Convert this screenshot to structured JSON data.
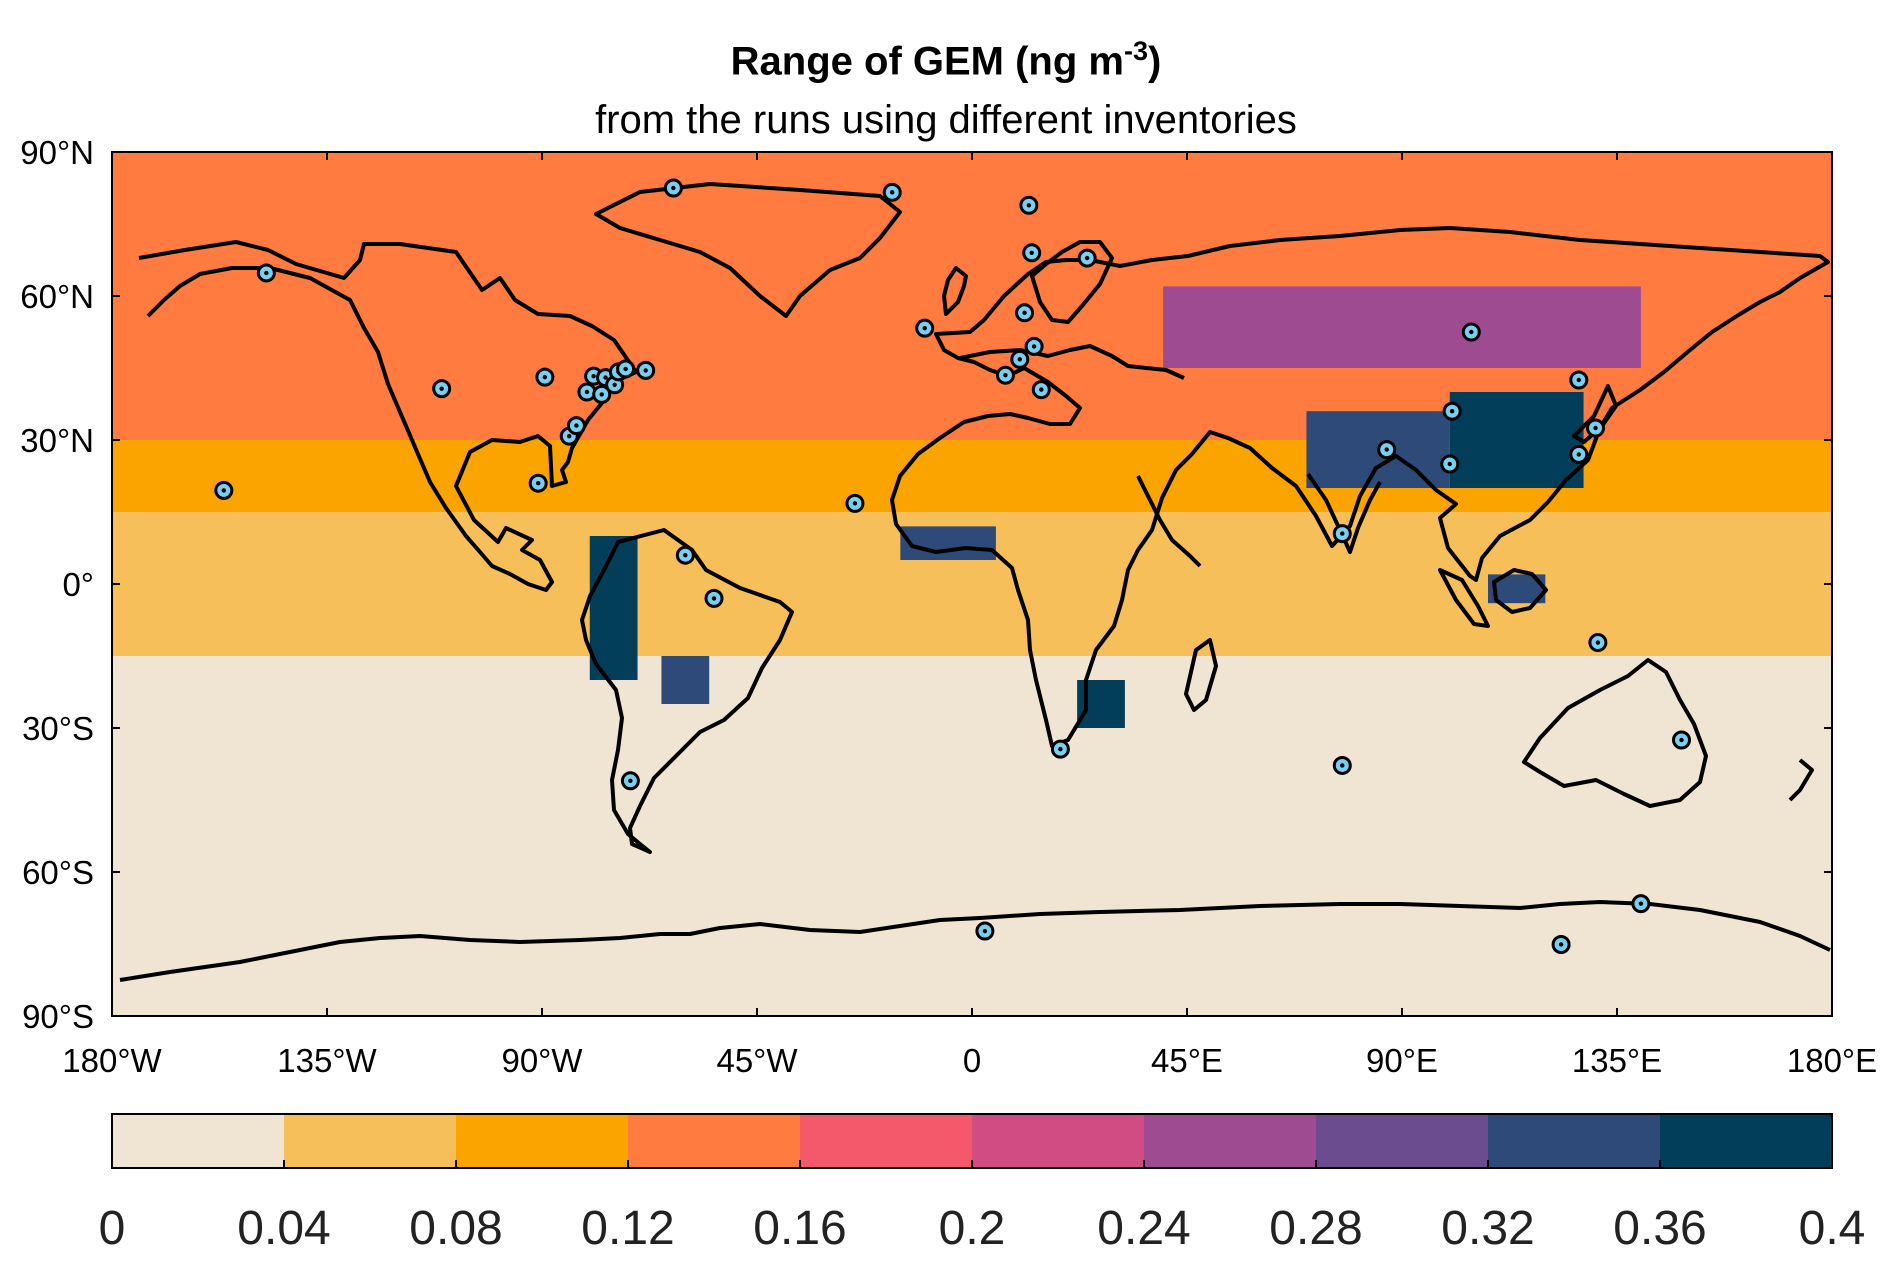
{
  "title": {
    "main": "Range of GEM (ng m",
    "superscript": "-3",
    "close": ")",
    "subtitle": "from the runs using different inventories"
  },
  "map": {
    "projection": "equirectangular",
    "lat_ticks": [
      "90°N",
      "60°N",
      "30°N",
      "0°",
      "30°S",
      "60°S",
      "90°S"
    ],
    "lon_ticks": [
      "180°W",
      "135°W",
      "90°W",
      "45°W",
      "0",
      "45°E",
      "90°E",
      "135°E",
      "180°E"
    ],
    "background_bands": [
      {
        "lat_from": 90,
        "lat_to": 30,
        "bin": 3
      },
      {
        "lat_from": 30,
        "lat_to": 15,
        "bin": 2
      },
      {
        "lat_from": 15,
        "lat_to": -15,
        "bin": 1
      },
      {
        "lat_from": -15,
        "lat_to": -90,
        "bin": 0
      }
    ],
    "stations": [
      [
        -147.7,
        64.8
      ],
      [
        -156.6,
        19.5
      ],
      [
        -111.0,
        40.7
      ],
      [
        -89.4,
        43.1
      ],
      [
        -84.3,
        30.8
      ],
      [
        -82.8,
        33.0
      ],
      [
        -80.6,
        40.0
      ],
      [
        -77.5,
        39.5
      ],
      [
        -79.2,
        43.3
      ],
      [
        -76.7,
        43.0
      ],
      [
        -74.8,
        41.5
      ],
      [
        -74.0,
        44.2
      ],
      [
        -72.5,
        44.8
      ],
      [
        -68.3,
        44.5
      ],
      [
        -90.8,
        21.0
      ],
      [
        -62.5,
        82.5
      ],
      [
        -16.7,
        81.6
      ],
      [
        -54.0,
        -3.0
      ],
      [
        -60.0,
        6.0
      ],
      [
        -71.5,
        -41.0
      ],
      [
        -24.5,
        16.8
      ],
      [
        -9.9,
        53.3
      ],
      [
        11.9,
        78.9
      ],
      [
        12.5,
        69.0
      ],
      [
        24.1,
        67.9
      ],
      [
        11.0,
        56.5
      ],
      [
        13.0,
        49.5
      ],
      [
        10.0,
        46.8
      ],
      [
        7.0,
        43.5
      ],
      [
        14.5,
        40.5
      ],
      [
        18.5,
        -34.4
      ],
      [
        77.5,
        10.5
      ],
      [
        86.8,
        28.0
      ],
      [
        100.5,
        36.0
      ],
      [
        100.0,
        25.0
      ],
      [
        104.5,
        52.5
      ],
      [
        127.0,
        42.5
      ],
      [
        130.5,
        32.5
      ],
      [
        127.0,
        27.0
      ],
      [
        131.0,
        -12.2
      ],
      [
        148.5,
        -32.5
      ],
      [
        77.5,
        -37.8
      ],
      [
        2.7,
        -72.3
      ],
      [
        123.3,
        -75.1
      ],
      [
        140.0,
        -66.6
      ]
    ]
  },
  "colorbar": {
    "colors": [
      "#f0e4d2",
      "#f6bf5a",
      "#fba400",
      "#ff7b3f",
      "#f4596b",
      "#d14c83",
      "#9f4b91",
      "#6a4c8f",
      "#2d4a78",
      "#023e5a"
    ],
    "tick_labels": [
      "0",
      "0.04",
      "0.08",
      "0.12",
      "0.16",
      "0.2",
      "0.24",
      "0.28",
      "0.32",
      "0.36",
      "0.4"
    ]
  },
  "chart_data": {
    "type": "heatmap",
    "title": "Range of GEM (ng m-3)",
    "subtitle": "from the runs using different inventories",
    "colorbar_range": [
      0,
      0.4
    ],
    "colorbar_step": 0.04,
    "hotspots": [
      {
        "lon": [
          100,
          128
        ],
        "lat": [
          20,
          40
        ],
        "bin": 9
      },
      {
        "lon": [
          70,
          100
        ],
        "lat": [
          20,
          36
        ],
        "bin": 8
      },
      {
        "lon": [
          40,
          140
        ],
        "lat": [
          45,
          62
        ],
        "bin": 6
      },
      {
        "lon": [
          -80,
          -70
        ],
        "lat": [
          -20,
          10
        ],
        "bin": 9
      },
      {
        "lon": [
          -65,
          -55
        ],
        "lat": [
          -25,
          -15
        ],
        "bin": 8
      },
      {
        "lon": [
          22,
          32
        ],
        "lat": [
          -30,
          -20
        ],
        "bin": 9
      },
      {
        "lon": [
          -15,
          5
        ],
        "lat": [
          5,
          12
        ],
        "bin": 8
      },
      {
        "lon": [
          108,
          120
        ],
        "lat": [
          -4,
          2
        ],
        "bin": 8
      }
    ]
  }
}
